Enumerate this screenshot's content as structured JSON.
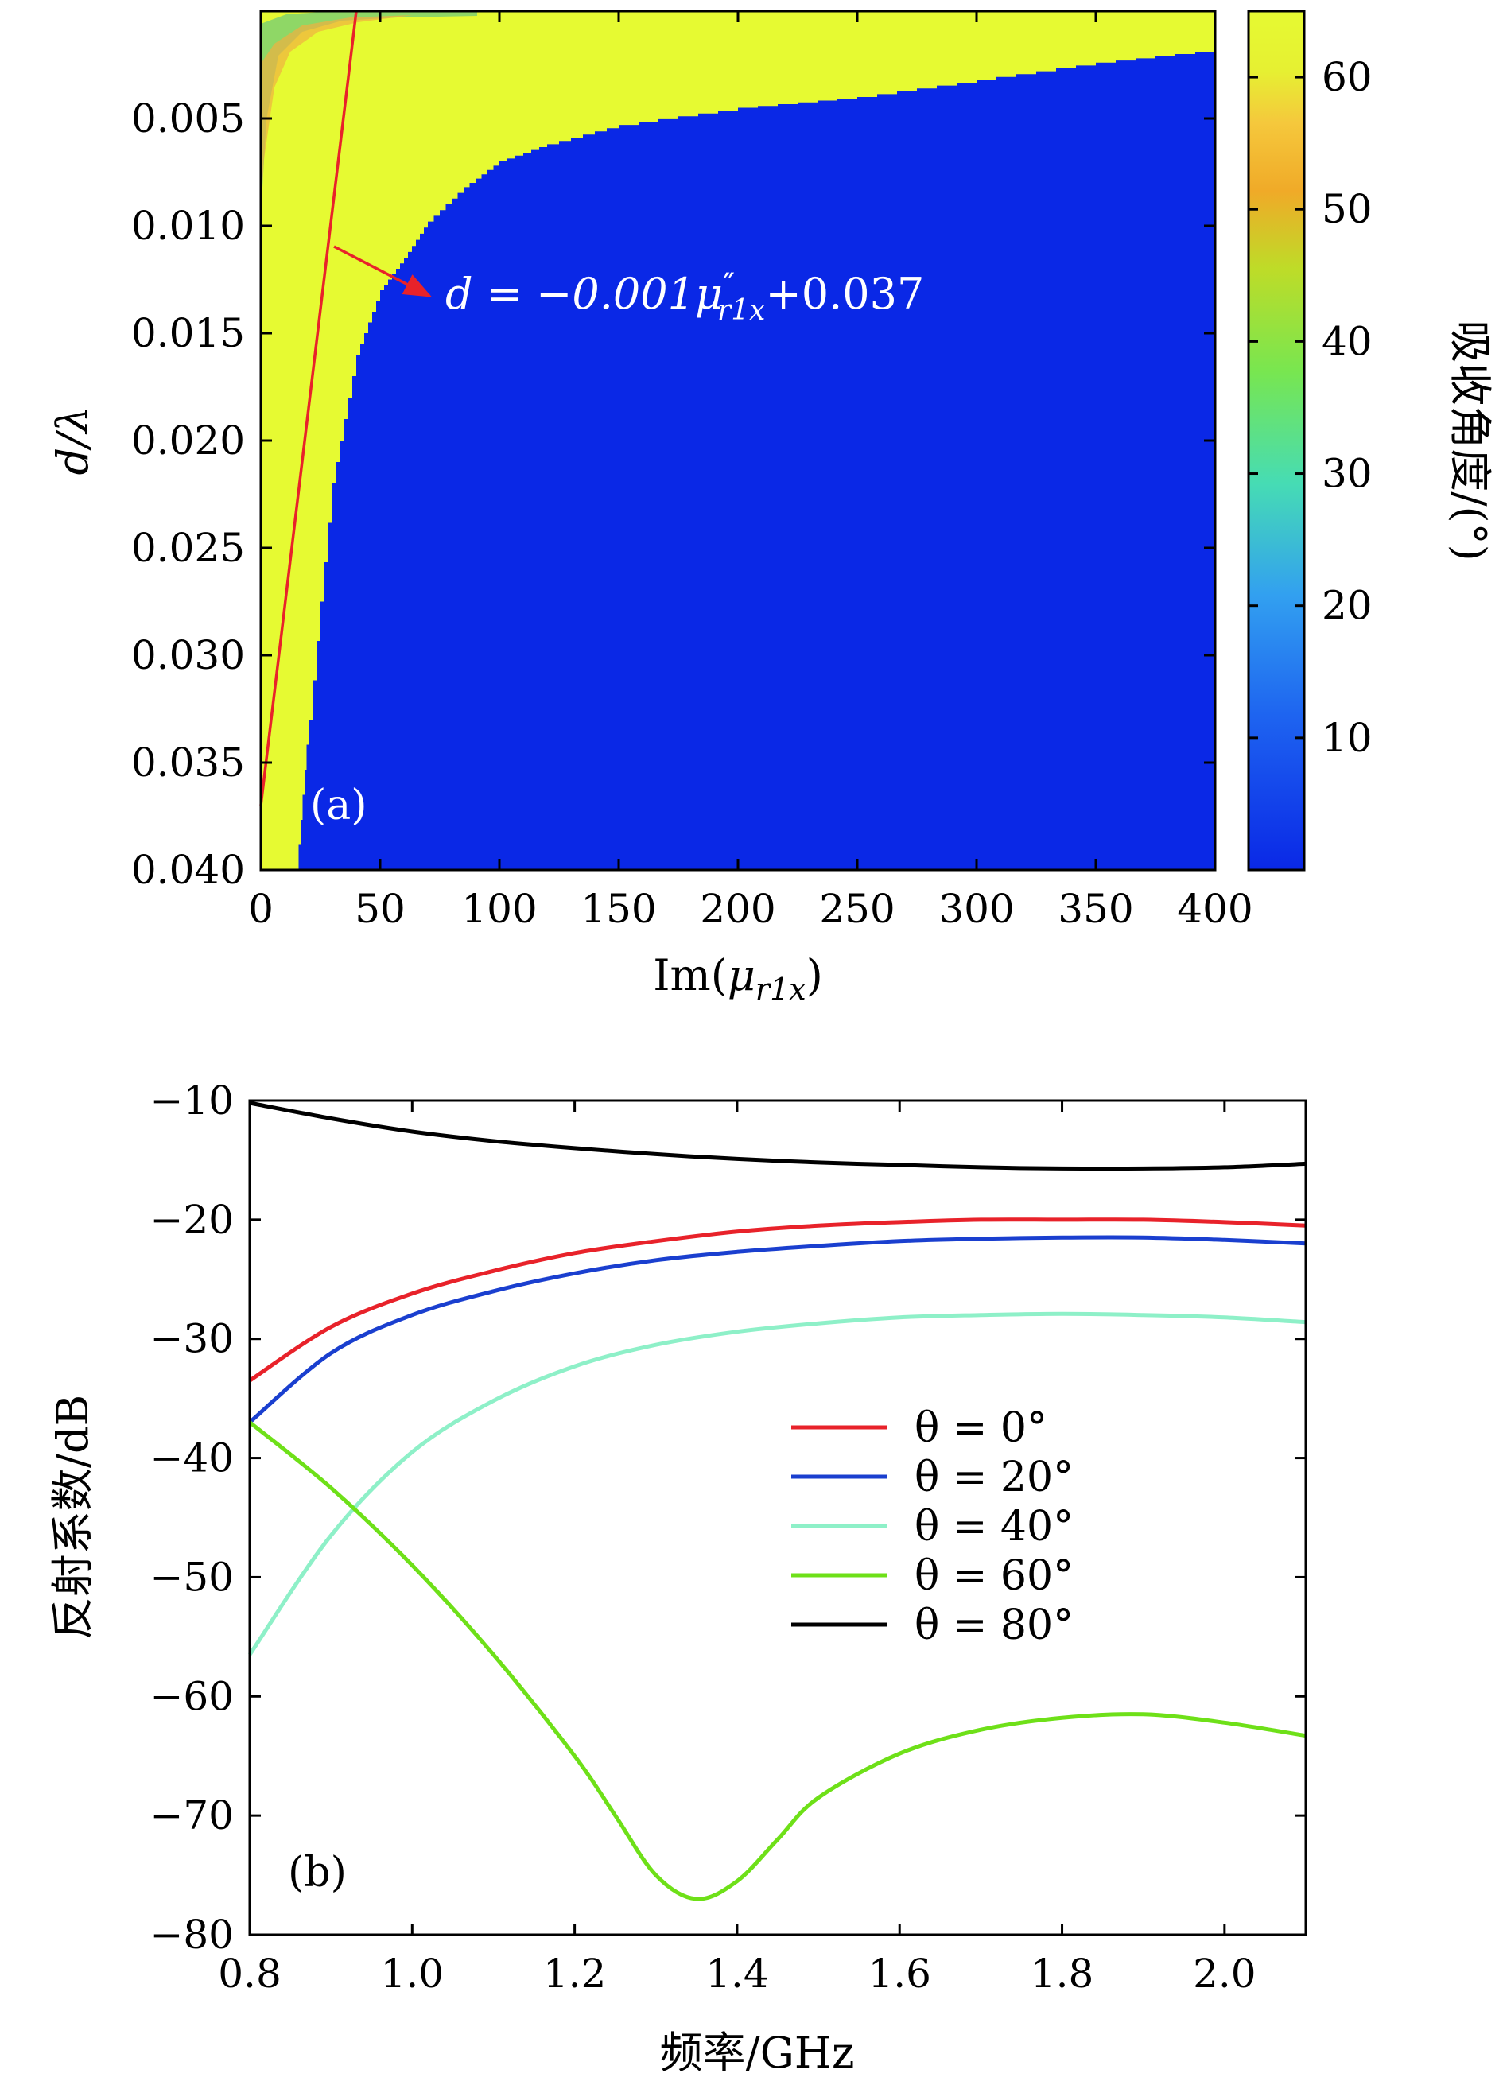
{
  "chart_data": [
    {
      "type": "heatmap",
      "panel_label": "(a)",
      "xlabel": "Im(μr1x)",
      "xlabel_parts": {
        "base": "Im(",
        "symbol": "μ",
        "sub": "r1x",
        "close": ")"
      },
      "ylabel": "d/λ",
      "xlim": [
        0,
        400
      ],
      "ylim": [
        0,
        0.04
      ],
      "y_inverted": true,
      "x_ticks": [
        0,
        50,
        100,
        150,
        200,
        250,
        300,
        350,
        400
      ],
      "x_tick_labels": [
        "0",
        "50",
        "100",
        "150",
        "200",
        "250",
        "300",
        "350",
        "400"
      ],
      "y_ticks": [
        0.005,
        0.01,
        0.015,
        0.02,
        0.025,
        0.03,
        0.035,
        0.04
      ],
      "y_tick_labels": [
        "0.005",
        "0.010",
        "0.015",
        "0.020",
        "0.025",
        "0.030",
        "0.035",
        "0.040"
      ],
      "colorbar": {
        "label": "吸收角度/(°)",
        "range": [
          0,
          65
        ],
        "ticks": [
          10,
          20,
          30,
          40,
          50,
          60
        ],
        "tick_labels": [
          "10",
          "20",
          "30",
          "40",
          "50",
          "60"
        ]
      },
      "high_region_color": "#e6fa32",
      "low_region_color": "#0a28e6",
      "boundary": {
        "description": "upper edge (d/λ) of high-absorption-angle region vs Im(μr1x)",
        "x": [
          15,
          20,
          30,
          40,
          50,
          60,
          70,
          85,
          100,
          120,
          150,
          200,
          250,
          300,
          350,
          400
        ],
        "y": [
          0.04,
          0.033,
          0.022,
          0.016,
          0.013,
          0.0115,
          0.0098,
          0.0082,
          0.007,
          0.0062,
          0.0053,
          0.0045,
          0.004,
          0.0032,
          0.0024,
          0.0018
        ]
      },
      "fit_line": {
        "x": [
          0,
          40
        ],
        "y": [
          0.037,
          0.0
        ],
        "color": "#e8222a",
        "annotation": "d = −0.001μ″r1x+0.037",
        "annotation_parts": {
          "lhs": "d = −0.001",
          "symbol": "μ",
          "prime": "″",
          "sub": "r1x",
          "rhs": "+0.037"
        }
      }
    },
    {
      "type": "line",
      "panel_label": "(b)",
      "xlabel": "频率/GHz",
      "ylabel": "反射系数/dB",
      "xlim": [
        0.8,
        2.1
      ],
      "ylim": [
        -80,
        -10
      ],
      "x_ticks": [
        0.8,
        1.0,
        1.2,
        1.4,
        1.6,
        1.8,
        2.0
      ],
      "x_tick_labels": [
        "0.8",
        "1.0",
        "1.2",
        "1.4",
        "1.6",
        "1.8",
        "2.0"
      ],
      "y_ticks": [
        -10,
        -20,
        -30,
        -40,
        -50,
        -60,
        -70,
        -80
      ],
      "y_tick_labels": [
        "−10",
        "−20",
        "−30",
        "−40",
        "−50",
        "−60",
        "−70",
        "−80"
      ],
      "legend_position": "center-right",
      "series": [
        {
          "name": "θ = 0°",
          "color": "#e8222a",
          "x": [
            0.8,
            0.9,
            1.0,
            1.1,
            1.2,
            1.3,
            1.4,
            1.5,
            1.6,
            1.7,
            1.8,
            1.9,
            2.0,
            2.1
          ],
          "y": [
            -33.5,
            -29.0,
            -26.2,
            -24.3,
            -22.8,
            -21.8,
            -21.0,
            -20.5,
            -20.2,
            -20.0,
            -20.0,
            -20.0,
            -20.2,
            -20.5
          ]
        },
        {
          "name": "θ = 20°",
          "color": "#1a3fcf",
          "x": [
            0.8,
            0.9,
            1.0,
            1.1,
            1.2,
            1.3,
            1.4,
            1.5,
            1.6,
            1.7,
            1.8,
            1.9,
            2.0,
            2.1
          ],
          "y": [
            -37.0,
            -31.2,
            -28.0,
            -26.0,
            -24.5,
            -23.4,
            -22.7,
            -22.2,
            -21.8,
            -21.6,
            -21.5,
            -21.5,
            -21.7,
            -22.0
          ]
        },
        {
          "name": "θ = 40°",
          "color": "#8ef0c8",
          "x": [
            0.8,
            0.9,
            1.0,
            1.1,
            1.2,
            1.3,
            1.4,
            1.5,
            1.6,
            1.7,
            1.8,
            1.9,
            2.0,
            2.1
          ],
          "y": [
            -56.5,
            -46.5,
            -39.5,
            -35.2,
            -32.3,
            -30.5,
            -29.4,
            -28.7,
            -28.2,
            -28.0,
            -27.9,
            -28.0,
            -28.2,
            -28.6
          ]
        },
        {
          "name": "θ = 60°",
          "color": "#6ee018",
          "x": [
            0.8,
            0.9,
            1.0,
            1.1,
            1.2,
            1.25,
            1.3,
            1.35,
            1.4,
            1.45,
            1.5,
            1.6,
            1.7,
            1.8,
            1.9,
            2.0,
            2.1
          ],
          "y": [
            -37.0,
            -42.5,
            -49.0,
            -56.5,
            -65.0,
            -70.0,
            -75.0,
            -77.0,
            -75.5,
            -72.0,
            -68.5,
            -64.8,
            -62.8,
            -61.8,
            -61.5,
            -62.2,
            -63.3
          ]
        },
        {
          "name": "θ = 80°",
          "color": "#000000",
          "x": [
            0.8,
            0.9,
            1.0,
            1.1,
            1.2,
            1.3,
            1.4,
            1.5,
            1.6,
            1.7,
            1.8,
            1.9,
            2.0,
            2.1
          ],
          "y": [
            -10.2,
            -11.5,
            -12.6,
            -13.4,
            -14.0,
            -14.5,
            -14.9,
            -15.2,
            -15.4,
            -15.6,
            -15.7,
            -15.7,
            -15.6,
            -15.3
          ]
        }
      ]
    }
  ]
}
